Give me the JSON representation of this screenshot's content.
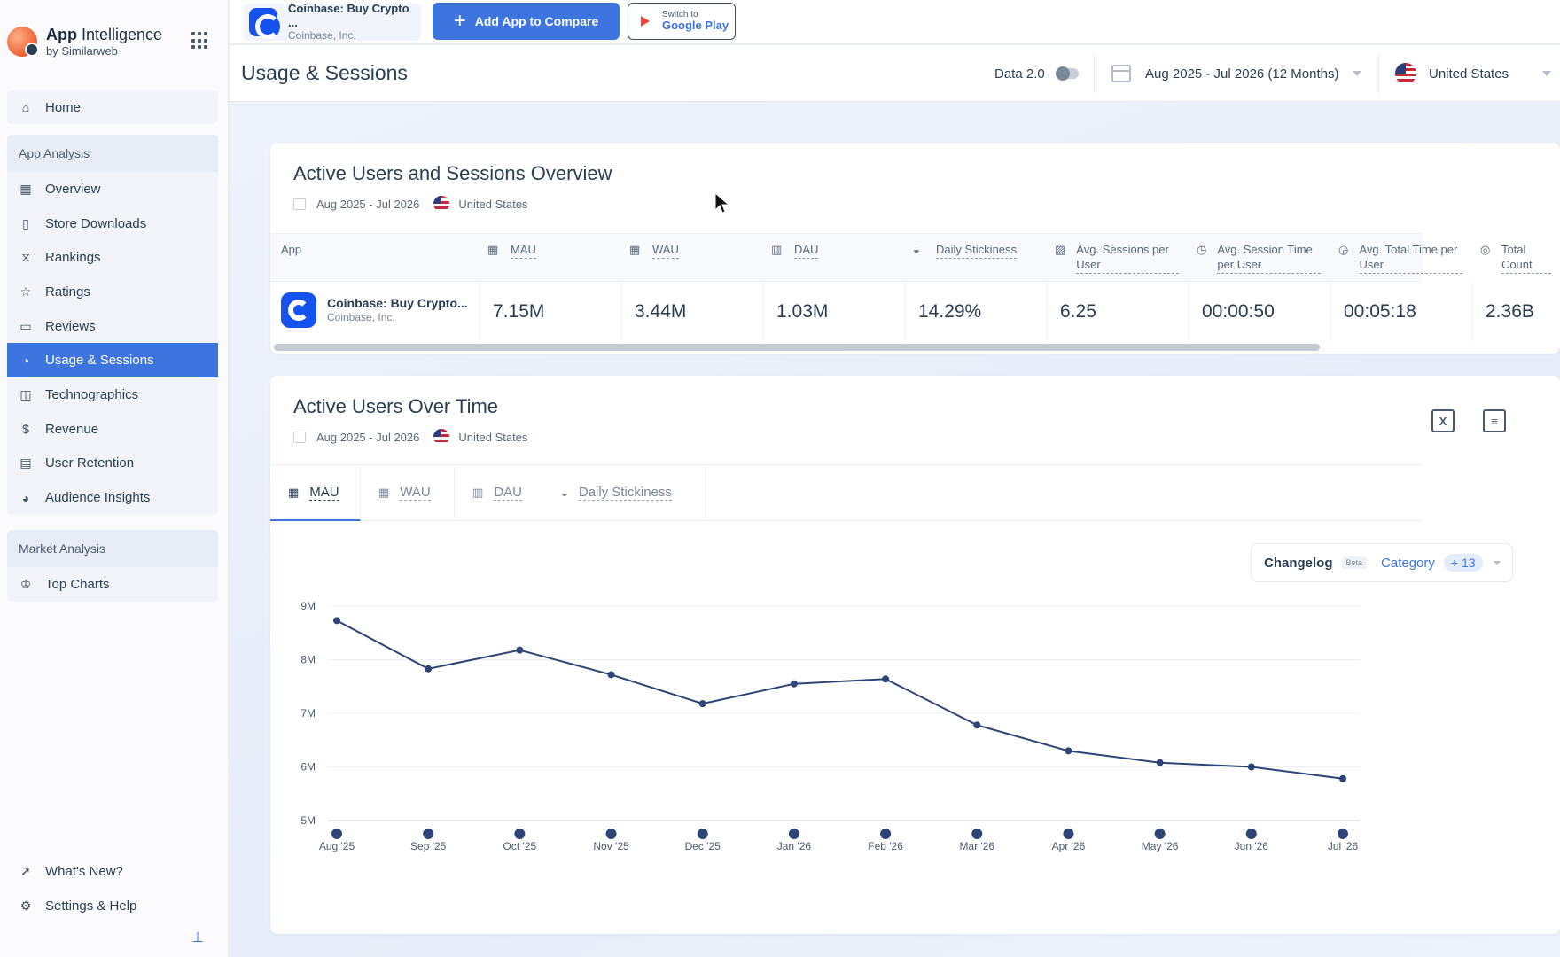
{
  "brand": {
    "title_bold": "App",
    "title_light": " Intelligence",
    "subtitle": "by Similarweb"
  },
  "sidebar": {
    "home": "Home",
    "app_analysis": {
      "header": "App Analysis",
      "items": [
        {
          "label": "Overview",
          "icon": "overview-icon"
        },
        {
          "label": "Store Downloads",
          "icon": "downloads-icon"
        },
        {
          "label": "Rankings",
          "icon": "rankings-icon"
        },
        {
          "label": "Ratings",
          "icon": "star-icon"
        },
        {
          "label": "Reviews",
          "icon": "reviews-icon"
        },
        {
          "label": "Usage & Sessions",
          "icon": "usage-icon",
          "active": true
        },
        {
          "label": "Technographics",
          "icon": "technographics-icon"
        },
        {
          "label": "Revenue",
          "icon": "dollar-icon"
        },
        {
          "label": "User Retention",
          "icon": "retention-icon"
        },
        {
          "label": "Audience Insights",
          "icon": "audience-icon"
        }
      ]
    },
    "market_analysis": {
      "header": "Market Analysis",
      "items": [
        {
          "label": "Top Charts",
          "icon": "trophy-icon"
        }
      ]
    },
    "bottom": [
      {
        "label": "What's New?",
        "icon": "rocket-icon"
      },
      {
        "label": "Settings & Help",
        "icon": "gear-icon"
      }
    ]
  },
  "topbar": {
    "app_name": "Coinbase: Buy Crypto ...",
    "app_publisher": "Coinbase, Inc.",
    "add_app": "Add App to Compare",
    "switch_small": "Switch to",
    "switch_big": "Google Play"
  },
  "header": {
    "title": "Usage & Sessions",
    "data_toggle": "Data 2.0",
    "date_range": "Aug 2025 - Jul 2026 (12 Months)",
    "country": "United States"
  },
  "overview": {
    "title": "Active Users and Sessions Overview",
    "date": "Aug 2025 - Jul 2026",
    "country": "United States",
    "columns": [
      {
        "label": "App"
      },
      {
        "label": "MAU"
      },
      {
        "label": "WAU"
      },
      {
        "label": "DAU"
      },
      {
        "label": "Daily Stickiness"
      },
      {
        "label": "Avg. Sessions per User"
      },
      {
        "label": "Avg. Session Time per User"
      },
      {
        "label": "Avg. Total Time per User"
      },
      {
        "label": "Total Count"
      }
    ],
    "row": {
      "app_name": "Coinbase: Buy Crypto...",
      "app_publisher": "Coinbase, Inc.",
      "values": [
        "7.15M",
        "3.44M",
        "1.03M",
        "14.29%",
        "6.25",
        "00:00:50",
        "00:05:18",
        "2.36B"
      ]
    }
  },
  "active_users": {
    "title": "Active Users Over Time",
    "date": "Aug 2025 - Jul 2026",
    "country": "United States",
    "tabs": [
      "MAU",
      "WAU",
      "DAU",
      "Daily Stickiness"
    ],
    "changelog": {
      "title": "Changelog",
      "beta": "Beta",
      "category": "Category",
      "count": "+ 13"
    }
  },
  "chart_data": {
    "type": "line",
    "title": "",
    "xlabel": "",
    "ylabel": "",
    "categories": [
      "Aug '25",
      "Sep '25",
      "Oct '25",
      "Nov '25",
      "Dec '25",
      "Jan '26",
      "Feb '26",
      "Mar '26",
      "Apr '26",
      "May '26",
      "Jun '26",
      "Jul '26"
    ],
    "series": [
      {
        "values": [
          8.73,
          7.83,
          8.18,
          7.72,
          7.18,
          7.55,
          7.64,
          6.78,
          6.3,
          6.08,
          6.0,
          5.78
        ]
      }
    ],
    "yticks": [
      "5M",
      "6M",
      "7M",
      "8M",
      "9M"
    ],
    "ylim": [
      5,
      9
    ],
    "grid": true,
    "color": "#2e4476"
  }
}
